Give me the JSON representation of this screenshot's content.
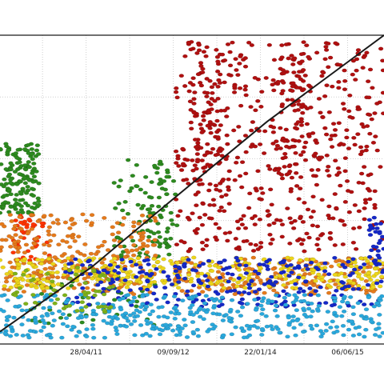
{
  "chart_data": {
    "type": "scatter",
    "title": "",
    "xlabel": "",
    "ylabel": "",
    "x_tick_labels": [
      "28/04/11",
      "09/09/12",
      "22/01/14",
      "06/06/15"
    ],
    "x_range_dates": [
      "2009-12-20",
      "2016-01-01"
    ],
    "y_range": [
      0,
      100
    ],
    "grid": true,
    "legend": "none",
    "series": [
      {
        "color": "#b01010",
        "clusters": [
          {
            "x": [
              "2012-09-25",
              "2016-01-01"
            ],
            "y": [
              30,
              98
            ],
            "n": 520
          },
          {
            "x": [
              "2013-01-01",
              "2013-07-15"
            ],
            "y": [
              48,
              97
            ],
            "n": 80
          },
          {
            "x": [
              "2014-04-01",
              "2014-10-01"
            ],
            "y": [
              55,
              94
            ],
            "n": 70
          }
        ]
      },
      {
        "color": "#ff3300",
        "clusters": [
          {
            "x": [
              "2010-03-01",
              "2010-10-01"
            ],
            "y": [
              27,
              42
            ],
            "n": 40
          }
        ]
      },
      {
        "color": "#2d8a1f",
        "clusters": [
          {
            "x": [
              "2009-12-20",
              "2010-08-01"
            ],
            "y": [
              42,
              65
            ],
            "n": 150
          },
          {
            "x": [
              "2011-10-01",
              "2012-10-01"
            ],
            "y": [
              28,
              60
            ],
            "n": 110
          },
          {
            "x": [
              "2010-06-01",
              "2012-06-01"
            ],
            "y": [
              5,
              25
            ],
            "n": 40
          }
        ]
      },
      {
        "color": "#e57a1c",
        "clusters": [
          {
            "x": [
              "2009-12-20",
              "2012-06-01"
            ],
            "y": [
              16,
              42
            ],
            "n": 260
          },
          {
            "x": [
              "2012-09-01",
              "2016-01-01"
            ],
            "y": [
              16,
              28
            ],
            "n": 200
          }
        ]
      },
      {
        "color": "#ecd51a",
        "clusters": [
          {
            "x": [
              "2009-12-20",
              "2016-01-01"
            ],
            "y": [
              18,
              28
            ],
            "n": 360
          }
        ]
      },
      {
        "color": "#1528c8",
        "clusters": [
          {
            "x": [
              "2011-01-01",
              "2016-01-01"
            ],
            "y": [
              12,
              28
            ],
            "n": 260
          },
          {
            "x": [
              "2015-10-01",
              "2016-01-01"
            ],
            "y": [
              25,
              42
            ],
            "n": 30
          }
        ]
      },
      {
        "color": "#2aa8dc",
        "clusters": [
          {
            "x": [
              "2009-12-20",
              "2016-01-01"
            ],
            "y": [
              2,
              16
            ],
            "n": 420
          }
        ]
      },
      {
        "color": "#7fb21a",
        "clusters": [
          {
            "x": [
              "2010-03-01",
              "2011-10-01"
            ],
            "y": [
              10,
              25
            ],
            "n": 60
          }
        ]
      }
    ],
    "trend_line": {
      "color": "#1a1a1a",
      "x": [
        "2009-12-20",
        "2011-06-01",
        "2012-09-09",
        "2014-03-01",
        "2016-01-01"
      ],
      "y": [
        4,
        25,
        47,
        72,
        100
      ]
    }
  }
}
